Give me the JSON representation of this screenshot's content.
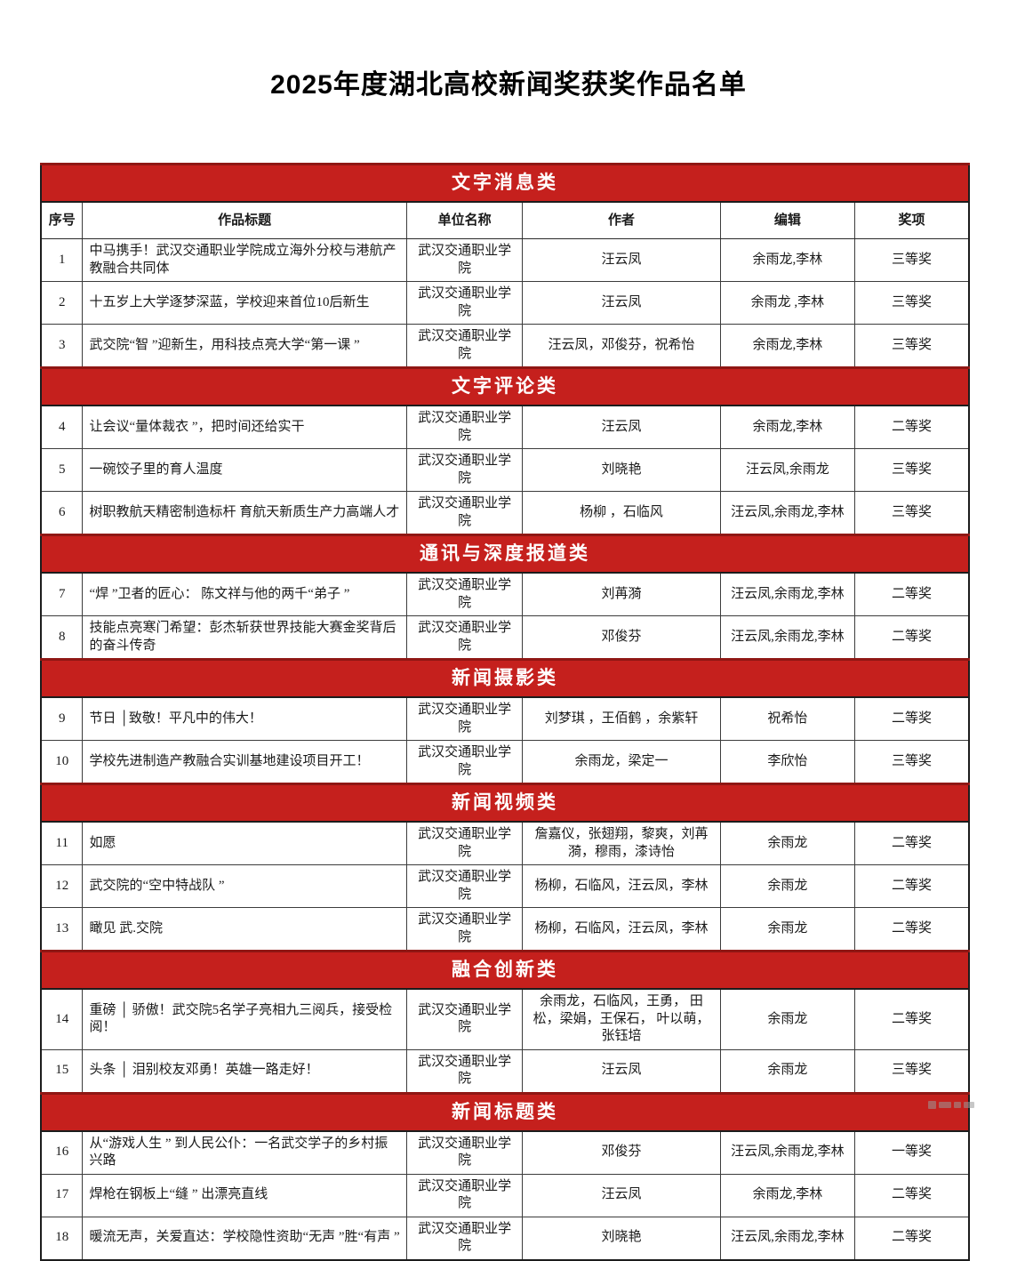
{
  "page": {
    "title": "2025年度湖北高校新闻奖获奖作品名单"
  },
  "colors": {
    "section_header_bg": "#c5201d",
    "section_header_top_edge": "#8f1714",
    "section_header_text": "#ffffff",
    "body_text": "#1a1a1a",
    "table_border": "#3c3c3c"
  },
  "table": {
    "columns": [
      "序号",
      "作品标题",
      "单位名称",
      "作者",
      "编辑",
      "奖项"
    ],
    "sections": [
      {
        "header": "文字消息类",
        "show_columns": true,
        "rows": [
          {
            "no": "1",
            "title": "中马携手！武汉交通职业学院成立海外分校与港航产教融合共同体",
            "unit": "武汉交通职业学院",
            "authors": "汪云凤",
            "editors": "余雨龙,李林",
            "award": "三等奖"
          },
          {
            "no": "2",
            "title": "十五岁上大学逐梦深蓝，学校迎来首位10后新生",
            "unit": "武汉交通职业学院",
            "authors": "汪云凤",
            "editors": "余雨龙 ,李林",
            "award": "三等奖"
          },
          {
            "no": "3",
            "title": "武交院“智 ”迎新生，用科技点亮大学“第一课 ”",
            "unit": "武汉交通职业学院",
            "authors": "汪云凤，邓俊芬，祝希怡",
            "editors": "余雨龙,李林",
            "award": "三等奖"
          }
        ]
      },
      {
        "header": "文字评论类",
        "show_columns": false,
        "rows": [
          {
            "no": "4",
            "title": "让会议“量体裁衣 ”，把时间还给实干",
            "unit": "武汉交通职业学院",
            "authors": "汪云凤",
            "editors": "余雨龙,李林",
            "award": "二等奖"
          },
          {
            "no": "5",
            "title": "一碗饺子里的育人温度",
            "unit": "武汉交通职业学院",
            "authors": "刘晓艳",
            "editors": "汪云凤,余雨龙",
            "award": "三等奖"
          },
          {
            "no": "6",
            "title": "树职教航天精密制造标杆 育航天新质生产力高端人才",
            "unit": "武汉交通职业学院",
            "authors": "杨柳 ，石临风",
            "editors": "汪云凤,余雨龙,李林",
            "award": "三等奖"
          }
        ]
      },
      {
        "header": "通讯与深度报道类",
        "show_columns": false,
        "rows": [
          {
            "no": "7",
            "title": "“焊 ”卫者的匠心： 陈文祥与他的两千“弟子 ”",
            "unit": "武汉交通职业学院",
            "authors": "刘苒漪",
            "editors": "汪云凤,余雨龙,李林",
            "award": "二等奖"
          },
          {
            "no": "8",
            "title": "技能点亮寒门希望：彭杰斩获世界技能大赛金奖背后的奋斗传奇",
            "unit": "武汉交通职业学院",
            "authors": "邓俊芬",
            "editors": "汪云凤,余雨龙,李林",
            "award": "二等奖"
          }
        ]
      },
      {
        "header": "新闻摄影类",
        "show_columns": false,
        "rows": [
          {
            "no": "9",
            "title": "节日 │致敬！平凡中的伟大！",
            "unit": "武汉交通职业学院",
            "authors": "刘梦琪 ，王佰鹤 ，余紫轩",
            "editors": "祝希怡",
            "award": "二等奖"
          },
          {
            "no": "10",
            "title": "学校先进制造产教融合实训基地建设项目开工！",
            "unit": "武汉交通职业学院",
            "authors": "余雨龙，梁定一",
            "editors": "李欣怡",
            "award": "三等奖"
          }
        ]
      },
      {
        "header": "新闻视频类",
        "show_columns": false,
        "rows": [
          {
            "no": "11",
            "title": "如愿",
            "unit": "武汉交通职业学院",
            "authors": "詹嘉仪，张翅翔，黎爽，刘苒漪，穆雨，漆诗怡",
            "editors": "余雨龙",
            "award": "二等奖"
          },
          {
            "no": "12",
            "title": "武交院的“空中特战队 ”",
            "unit": "武汉交通职业学院",
            "authors": "杨柳，石临风，汪云凤，李林",
            "editors": "余雨龙",
            "award": "二等奖"
          },
          {
            "no": "13",
            "title": "瞰见 武.交院",
            "unit": "武汉交通职业学院",
            "authors": "杨柳，石临风，汪云凤，李林",
            "editors": "余雨龙",
            "award": "二等奖"
          }
        ]
      },
      {
        "header": "融合创新类",
        "show_columns": false,
        "rows": [
          {
            "no": "14",
            "title": "重磅 │ 骄傲！武交院5名学子亮相九三阅兵，接受检阅！",
            "unit": "武汉交通职业学院",
            "authors": "余雨龙，石临风，王勇， 田松，梁娟，王保石， 叶以萌，张钰培",
            "editors": "余雨龙",
            "award": "二等奖"
          },
          {
            "no": "15",
            "title": "头条 │ 泪别校友邓勇！英雄一路走好！",
            "unit": "武汉交通职业学院",
            "authors": "汪云凤",
            "editors": "余雨龙",
            "award": "三等奖"
          }
        ]
      },
      {
        "header": "新闻标题类",
        "show_columns": false,
        "rows": [
          {
            "no": "16",
            "title": "从“游戏人生 ” 到人民公仆：一名武交学子的乡村振兴路",
            "unit": "武汉交通职业学院",
            "authors": "邓俊芬",
            "editors": "汪云凤,余雨龙,李林",
            "award": "一等奖"
          },
          {
            "no": "17",
            "title": "焊枪在钢板上“缝 ” 出漂亮直线",
            "unit": "武汉交通职业学院",
            "authors": "汪云凤",
            "editors": "余雨龙,李林",
            "award": "二等奖"
          },
          {
            "no": "18",
            "title": "暖流无声，关爱直达：学校隐性资助“无声 ”胜“有声 ”",
            "unit": "武汉交通职业学院",
            "authors": "刘晓艳",
            "editors": "汪云凤,余雨龙,李林",
            "award": "二等奖"
          }
        ]
      }
    ]
  }
}
